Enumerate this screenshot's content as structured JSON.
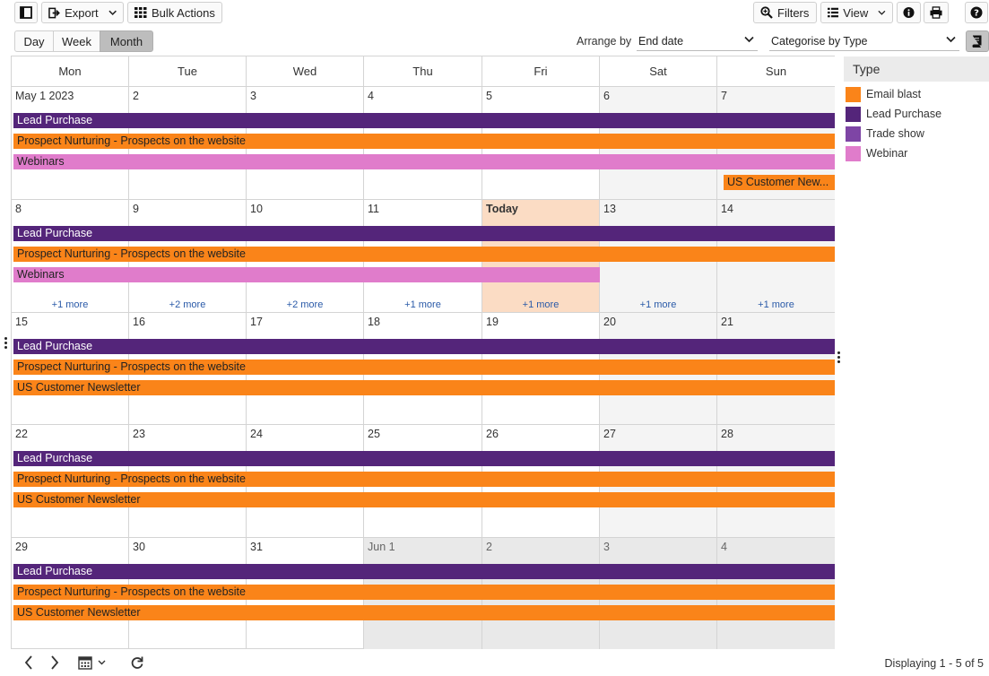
{
  "toolbar": {
    "export_label": "Export",
    "bulk_actions_label": "Bulk Actions",
    "filters_label": "Filters",
    "view_label": "View"
  },
  "views": {
    "day": "Day",
    "week": "Week",
    "month": "Month"
  },
  "arrange": {
    "label": "Arrange by",
    "value": "End date"
  },
  "categorise": {
    "value": "Categorise by Type"
  },
  "weekdays": [
    "Mon",
    "Tue",
    "Wed",
    "Thu",
    "Fri",
    "Sat",
    "Sun"
  ],
  "weeks": [
    {
      "days": [
        "May 1 2023",
        "2",
        "3",
        "4",
        "5",
        "6",
        "7"
      ],
      "more": [
        "",
        "",
        "",
        "",
        "",
        "",
        ""
      ]
    },
    {
      "days": [
        "8",
        "9",
        "10",
        "11",
        "Today",
        "13",
        "14"
      ],
      "more": [
        "+1 more",
        "+2 more",
        "+2 more",
        "+1 more",
        "+1 more",
        "+1 more",
        "+1 more"
      ]
    },
    {
      "days": [
        "15",
        "16",
        "17",
        "18",
        "19",
        "20",
        "21"
      ],
      "more": [
        "",
        "",
        "",
        "",
        "",
        "",
        ""
      ]
    },
    {
      "days": [
        "22",
        "23",
        "24",
        "25",
        "26",
        "27",
        "28"
      ],
      "more": [
        "",
        "",
        "",
        "",
        "",
        "",
        ""
      ]
    },
    {
      "days": [
        "29",
        "30",
        "31",
        "Jun 1",
        "2",
        "3",
        "4"
      ],
      "more": [
        "",
        "",
        "",
        "",
        "",
        "",
        ""
      ]
    }
  ],
  "events": {
    "lead_purchase": "Lead Purchase",
    "prospect_nurturing": "Prospect Nurturing - Prospects on the website",
    "webinars": "Webinars",
    "us_newsletter": "US Customer Newsletter",
    "us_newsletter_short": "US Customer New..."
  },
  "legend": {
    "title": "Type",
    "items": [
      {
        "label": "Email blast",
        "color": "#fa8419"
      },
      {
        "label": "Lead Purchase",
        "color": "#54257a"
      },
      {
        "label": "Trade show",
        "color": "#7e45a5"
      },
      {
        "label": "Webinar",
        "color": "#e07ccb"
      }
    ]
  },
  "status": {
    "text": "Displaying 1 - 5 of 5"
  }
}
